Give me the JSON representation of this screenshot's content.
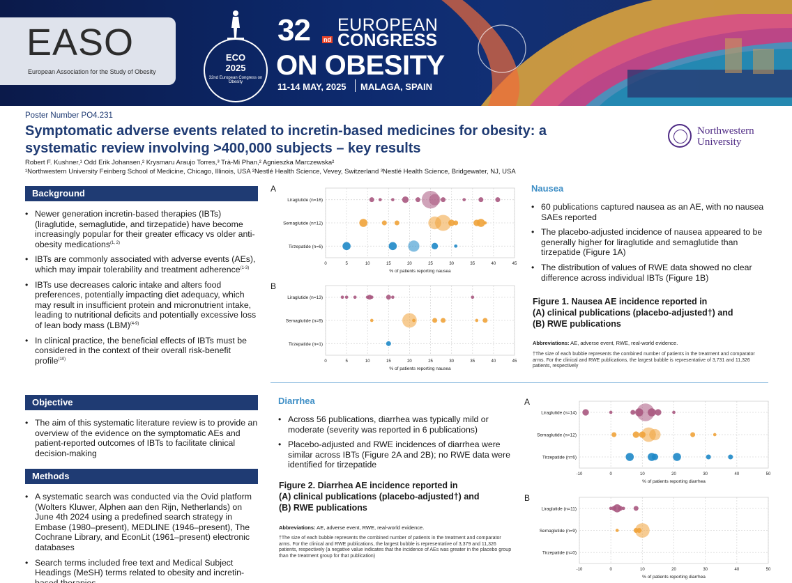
{
  "banner": {
    "easo_logo": "EASO",
    "easo_sub": "European Association for the Study of Obesity",
    "eco_line1": "ECO",
    "eco_line2": "2025",
    "eco_line3": "32nd European Congress on Obesity",
    "congress_number": "32",
    "congress_suffix": "nd",
    "congress_line1": "EUROPEAN",
    "congress_line2": "CONGRESS",
    "congress_line3": "ON OBESITY",
    "dates": "11-14 MAY, 2025",
    "place": "MALAGA, SPAIN"
  },
  "header": {
    "poster_number": "Poster Number PO4.231",
    "title": "Symptomatic adverse events related to incretin-based medicines for obesity: a systematic review involving >400,000 subjects – key results",
    "authors": "Robert F. Kushner,¹  Odd Erik Johansen,²  Krysmaru Araujo Torres,³  Trà-Mi Phan,² Agnieszka Marczewska²",
    "affiliations": "¹Northwestern University Feinberg School of Medicine, Chicago, Illinois, USA  ²Nestlé Health Science, Vevey, Switzerland  ³Nestlé Health Science, Bridgewater, NJ, USA",
    "institution_line1": "Northwestern",
    "institution_line2": "University"
  },
  "background": {
    "heading": "Background",
    "items": [
      {
        "text": "Newer generation incretin-based therapies (IBTs) (liraglutide, semaglutide, and tirzepatide) have become increasingly popular for their greater efficacy vs older anti-obesity medications",
        "ref": "(1, 2)"
      },
      {
        "text": "IBTs are commonly associated with adverse events (AEs), which may impair tolerability and treatment adherence",
        "ref": "(1-3)"
      },
      {
        "text": "IBTs use decreases caloric intake and alters food preferences, potentially impacting diet adequacy, which may result in insufficient protein and micronutrient intake, leading to nutritional deficits and potentially excessive loss of lean body mass (LBM)",
        "ref": "(4-9)"
      },
      {
        "text": "In clinical practice, the beneficial effects of IBTs must be considered in the context of their overall risk-benefit profile",
        "ref": "(10)"
      }
    ]
  },
  "objective": {
    "heading": "Objective",
    "items": [
      {
        "text": "The aim of this systematic literature review is to provide an overview of the evidence on the symptomatic AEs and patient-reported outcomes of IBTs to facilitate clinical decision-making",
        "ref": ""
      }
    ]
  },
  "methods": {
    "heading": "Methods",
    "items": [
      {
        "text": "A systematic search was conducted via the Ovid platform (Wolters Kluwer, Alphen aan den Rijn, Netherlands) on June 4th 2024 using a predefined search strategy in Embase (1980–present), MEDLINE (1946–present), The Cochrane Library, and EconLit (1961–present) electronic databases",
        "ref": ""
      },
      {
        "text": "Search terms included free text and Medical Subject Headings (MeSH) terms related to obesity and incretin-based therapies",
        "ref": ""
      }
    ]
  },
  "nausea": {
    "heading": "Nausea",
    "items": [
      "60 publications captured nausea as an AE, with no nausea SAEs reported",
      "The placebo-adjusted incidence of nausea appeared to be generally higher for liraglutide and semaglutide than tirzepatide (Figure 1A)",
      "The distribution of values of RWE data showed no clear difference across individual IBTs (Figure 1B)"
    ],
    "figure_title_line1": "Figure 1. Nausea AE incidence reported in",
    "figure_title_line2": "(A) clinical publications (placebo-adjusted†) and",
    "figure_title_line3": "(B) RWE publications",
    "abbreviations_label": "Abbreviations:",
    "abbreviations_text": " AE, adverse event, RWE, real-world evidence.",
    "footnote": "†The size of each bubble represents the combined number of patients in the treatment and comparator arms. For the clinical and RWE publications, the largest bubble is representative of 3,731 and 11,326 patients, respectively"
  },
  "diarrhea": {
    "heading": "Diarrhea",
    "items": [
      "Across 56 publications, diarrhea was typically mild or moderate (severity was reported in 6 publications)",
      "Placebo-adjusted and RWE incidences of diarrhea were similar across IBTs (Figure 2A and 2B); no RWE data were identified for tirzepatide"
    ],
    "figure_title_line1": "Figure 2. Diarrhea AE incidence reported in",
    "figure_title_line2": "(A) clinical publications (placebo-adjusted†) and",
    "figure_title_line3": "(B) RWE publications",
    "abbreviations_label": "Abbreviations:",
    "abbreviations_text": " AE, adverse event, RWE, real-world evidence.",
    "footnote": "†The size of each bubble represents the combined number of patients in the treatment and comparator arms. For the clinical and RWE publications, the largest bubble is representative of 3,379 and 11,326 patients, respectively (a negative value indicates that the incidence of AEs was greater in the placebo group than the treatment group for that publication)"
  },
  "colors": {
    "navy": "#1f3b73",
    "accent_blue": "#3f8fc6",
    "liraglutide": "#a9587f",
    "semaglutide": "#f0a33a",
    "tirzepatide": "#1e88c8"
  },
  "chart_data": [
    {
      "id": "fig1A",
      "panel": "A",
      "type": "scatter",
      "xlabel": "% of patients reporting nausea",
      "xlim": [
        0,
        45
      ],
      "ticks": [
        0,
        5,
        10,
        15,
        20,
        25,
        30,
        35,
        40,
        45
      ],
      "categories": [
        "Liraglutide (n=16)",
        "Semaglutide (n=12)",
        "Tirzepatide (n=6)"
      ],
      "series": [
        {
          "category": 0,
          "points": [
            [
              11,
              2
            ],
            [
              13,
              1
            ],
            [
              16,
              1
            ],
            [
              19,
              3
            ],
            [
              22,
              2
            ],
            [
              25,
              10
            ],
            [
              26,
              6
            ],
            [
              28,
              2
            ],
            [
              33,
              1
            ],
            [
              37,
              2
            ],
            [
              41,
              2
            ]
          ]
        },
        {
          "category": 1,
          "points": [
            [
              9,
              4
            ],
            [
              14,
              2
            ],
            [
              17,
              2
            ],
            [
              26,
              7
            ],
            [
              28,
              9
            ],
            [
              30,
              3
            ],
            [
              31,
              2
            ],
            [
              36,
              3
            ],
            [
              37,
              4
            ],
            [
              38,
              1
            ]
          ]
        },
        {
          "category": 2,
          "points": [
            [
              5,
              4
            ],
            [
              16,
              4
            ],
            [
              21,
              6
            ],
            [
              26,
              3
            ],
            [
              31,
              1
            ]
          ]
        }
      ]
    },
    {
      "id": "fig1B",
      "panel": "B",
      "type": "scatter",
      "xlabel": "% of patients reporting nausea",
      "xlim": [
        0,
        45
      ],
      "ticks": [
        0,
        5,
        10,
        15,
        20,
        25,
        30,
        35,
        40,
        45
      ],
      "categories": [
        "Liraglutide (n=13)",
        "Semaglutide (n=9)",
        "Tirzepatide (n=1)"
      ],
      "series": [
        {
          "category": 0,
          "points": [
            [
              4,
              1
            ],
            [
              5,
              1
            ],
            [
              7,
              1
            ],
            [
              10,
              1
            ],
            [
              10.5,
              2
            ],
            [
              11,
              1
            ],
            [
              15,
              2
            ],
            [
              16,
              1
            ],
            [
              35,
              1
            ]
          ]
        },
        {
          "category": 1,
          "points": [
            [
              11,
              1
            ],
            [
              20,
              8
            ],
            [
              21,
              1
            ],
            [
              26,
              2
            ],
            [
              28,
              2
            ],
            [
              36,
              1
            ],
            [
              38,
              2
            ]
          ]
        },
        {
          "category": 2,
          "points": [
            [
              15,
              2
            ]
          ]
        }
      ]
    },
    {
      "id": "fig2A",
      "panel": "A",
      "type": "scatter",
      "xlabel": "% of patients reporting diarrhea",
      "xlim": [
        -10,
        50
      ],
      "ticks": [
        -10,
        0,
        10,
        20,
        30,
        40,
        50
      ],
      "categories": [
        "Liraglutide (n=14)",
        "Semaglutide (n=12)",
        "Tirzepatide (n=6)"
      ],
      "series": [
        {
          "category": 0,
          "points": [
            [
              -8,
              3
            ],
            [
              0,
              1
            ],
            [
              7,
              2
            ],
            [
              9,
              4
            ],
            [
              11,
              10
            ],
            [
              13,
              4
            ],
            [
              15,
              3
            ],
            [
              20,
              1
            ]
          ]
        },
        {
          "category": 1,
          "points": [
            [
              1,
              2
            ],
            [
              8,
              3
            ],
            [
              10,
              3
            ],
            [
              12,
              8
            ],
            [
              14,
              6
            ],
            [
              26,
              2
            ],
            [
              33,
              1
            ]
          ]
        },
        {
          "category": 2,
          "points": [
            [
              6,
              4
            ],
            [
              13,
              4
            ],
            [
              14,
              3
            ],
            [
              21,
              4
            ],
            [
              31,
              2
            ],
            [
              38,
              2
            ]
          ]
        }
      ]
    },
    {
      "id": "fig2B",
      "panel": "B",
      "type": "scatter",
      "xlabel": "% of patients reporting diarrhea",
      "xlim": [
        -10,
        50
      ],
      "ticks": [
        -10,
        0,
        10,
        20,
        30,
        40,
        50
      ],
      "categories": [
        "Liraglutide (n=11)",
        "Semaglutide (n=9)",
        "Tirzepatide (n=0)"
      ],
      "series": [
        {
          "category": 0,
          "points": [
            [
              0,
              1
            ],
            [
              1,
              2
            ],
            [
              2,
              4
            ],
            [
              3,
              2
            ],
            [
              4,
              1
            ],
            [
              8,
              2
            ]
          ]
        },
        {
          "category": 1,
          "points": [
            [
              2,
              1
            ],
            [
              8,
              2
            ],
            [
              9,
              2
            ],
            [
              10,
              8
            ]
          ]
        },
        {
          "category": 2,
          "points": []
        }
      ]
    }
  ]
}
